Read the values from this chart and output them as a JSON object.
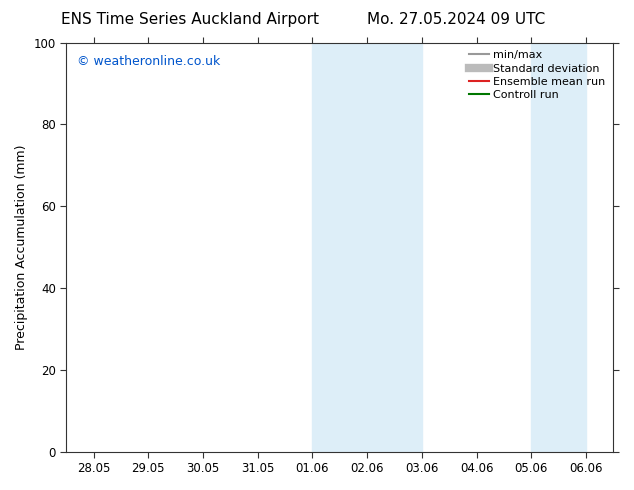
{
  "title_left": "ENS Time Series Auckland Airport",
  "title_right": "Mo. 27.05.2024 09 UTC",
  "ylabel": "Precipitation Accumulation (mm)",
  "ylim": [
    0,
    100
  ],
  "yticks": [
    0,
    20,
    40,
    60,
    80,
    100
  ],
  "xtick_labels": [
    "28.05",
    "29.05",
    "30.05",
    "31.05",
    "01.06",
    "02.06",
    "03.06",
    "04.06",
    "05.06",
    "06.06"
  ],
  "background_color": "#ffffff",
  "plot_bg_color": "#ffffff",
  "shaded_bands": [
    {
      "xstart": 4,
      "xend": 5,
      "color": "#ddeef8"
    },
    {
      "xstart": 5,
      "xend": 6,
      "color": "#ddeef8"
    },
    {
      "xstart": 8,
      "xend": 9,
      "color": "#ddeef8"
    }
  ],
  "watermark_text": "© weatheronline.co.uk",
  "watermark_color": "#0055cc",
  "legend_entries": [
    {
      "label": "min/max",
      "color": "#999999",
      "lw": 1.5,
      "style": "solid"
    },
    {
      "label": "Standard deviation",
      "color": "#bbbbbb",
      "lw": 6,
      "style": "solid"
    },
    {
      "label": "Ensemble mean run",
      "color": "#dd2222",
      "lw": 1.5,
      "style": "solid"
    },
    {
      "label": "Controll run",
      "color": "#007700",
      "lw": 1.5,
      "style": "solid"
    }
  ],
  "title_fontsize": 11,
  "axis_label_fontsize": 9,
  "tick_fontsize": 8.5,
  "watermark_fontsize": 9,
  "legend_fontsize": 8
}
